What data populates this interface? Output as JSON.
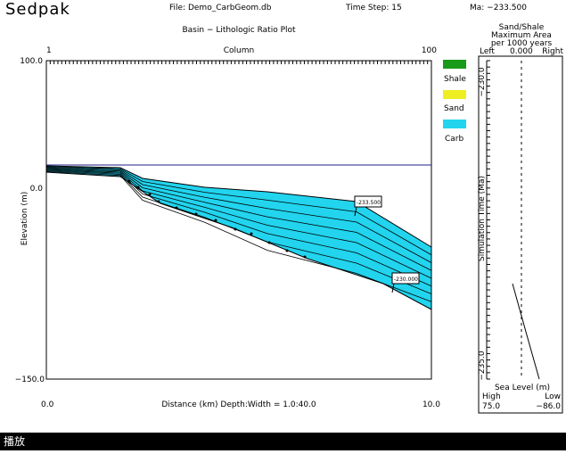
{
  "header": {
    "app": "Sedpak",
    "file": "File: Demo_CarbGeom.db",
    "time_step": "Time Step:  15",
    "ma": "Ma:  −233.500"
  },
  "plot": {
    "title": "Basin − Lithologic Ratio Plot",
    "column_left": "1",
    "column_label": "Column",
    "column_right": "100",
    "y_top": "100.0",
    "y_mid": "0.0",
    "y_bottom": "−150.0",
    "y_label": "Elevation (m)",
    "x_left": "0.0",
    "x_label": "Distance (km)   Depth:Width = 1.0:40.0",
    "x_right": "10.0",
    "label_upper": "-233.500",
    "label_lower": "-230.000"
  },
  "legend": {
    "items": [
      "Shale",
      "Sand",
      "Carb"
    ]
  },
  "side_panel": {
    "title_lines": [
      "Sand/Shale",
      "Maximum Area",
      "per 1000 years"
    ],
    "left": "Left",
    "value": "0.000",
    "right": "Right",
    "t_top": "−230.0",
    "t_label": "Simulation Time (Ma)",
    "t_bottom": "−235.0",
    "sea_label": "Sea Level (m)",
    "high": "High",
    "low": "Low",
    "high_value": "75.0",
    "low_value": "−86.0"
  },
  "taskbar": {
    "label": "播放"
  }
}
